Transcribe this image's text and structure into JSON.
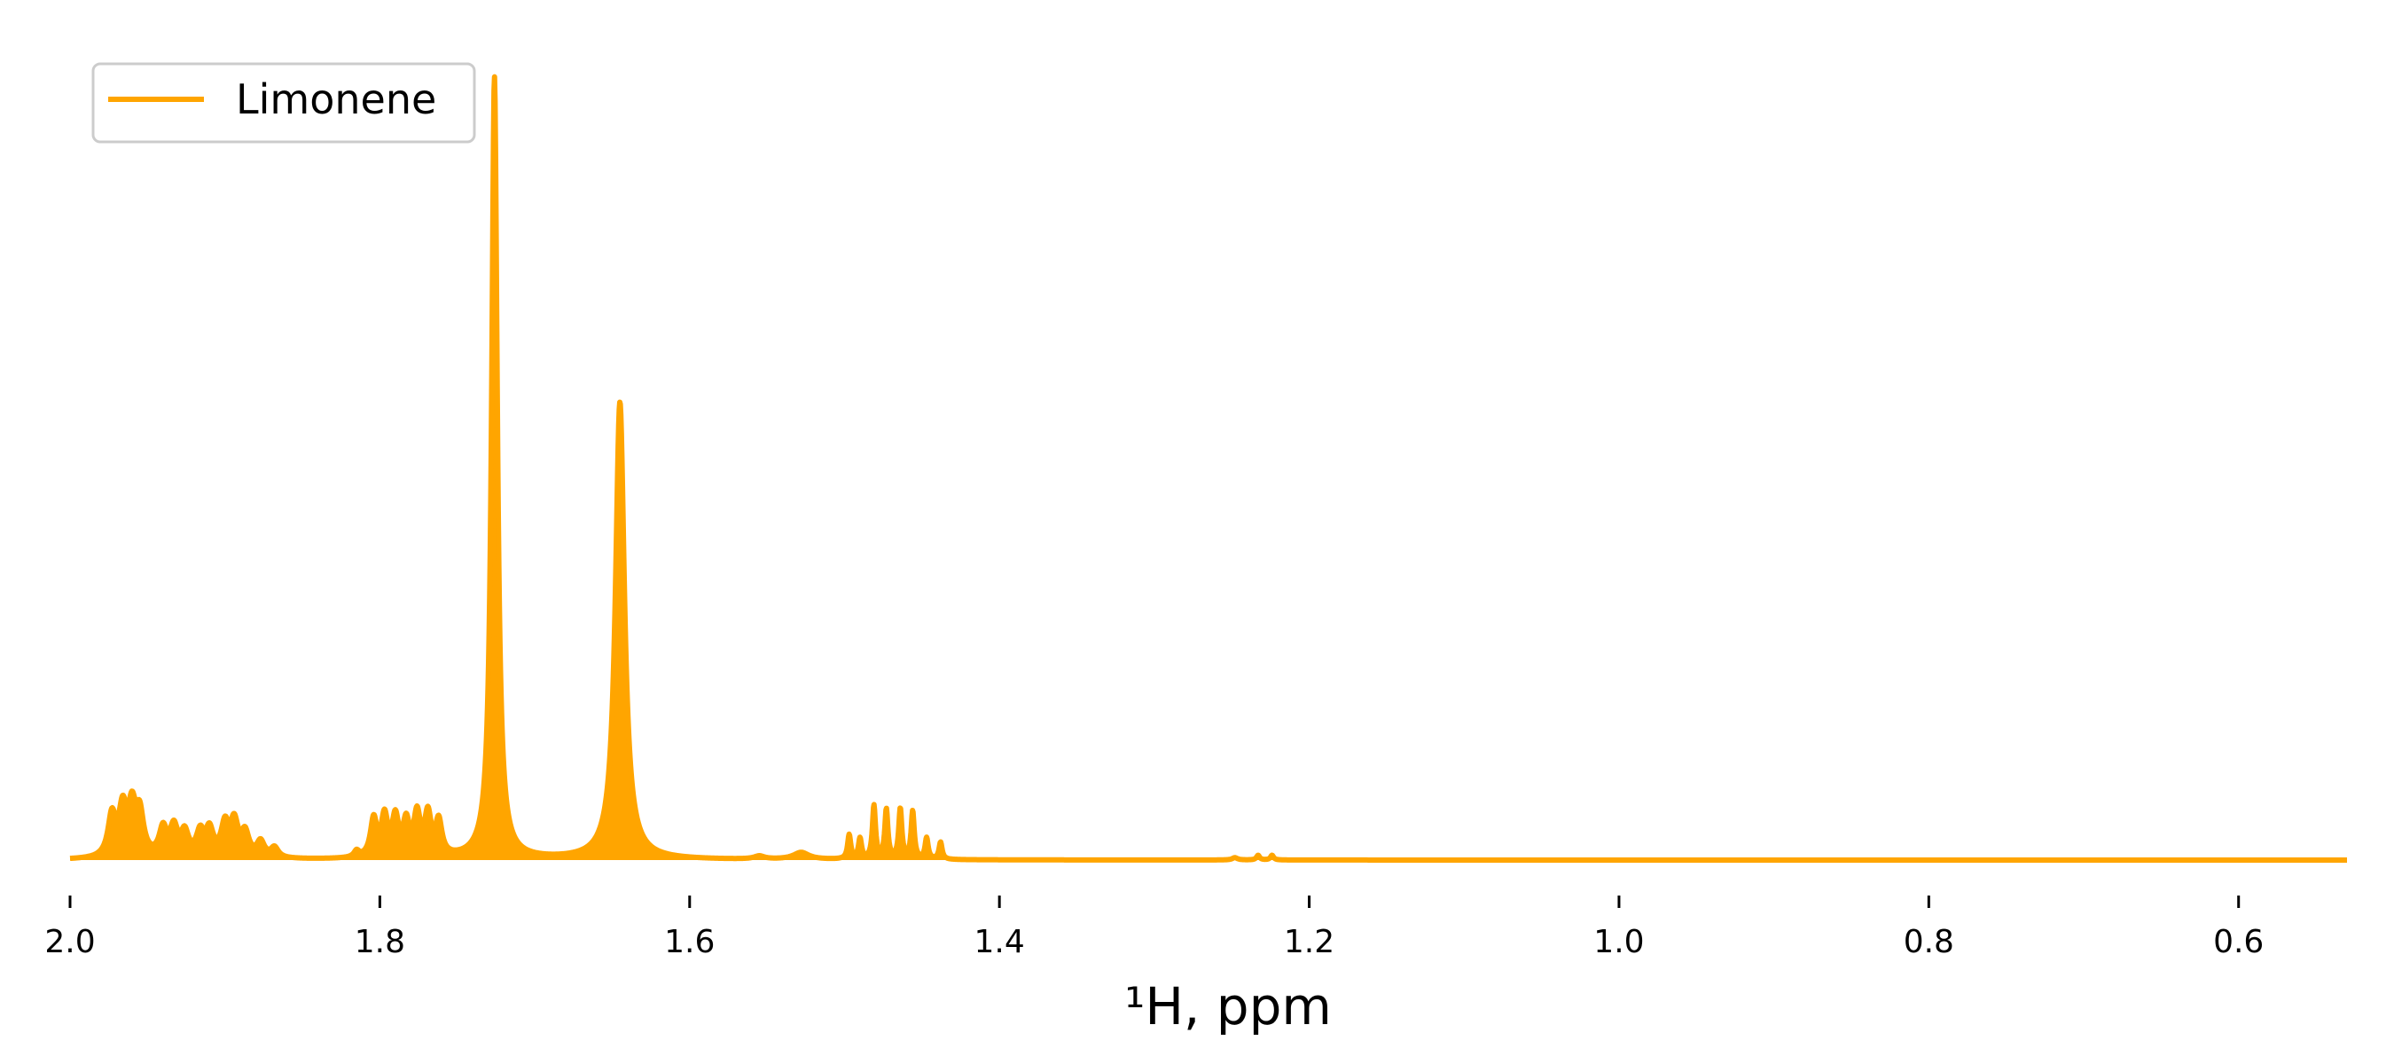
{
  "chart_data": {
    "type": "line",
    "title": "",
    "xlabel": "¹H, ppm",
    "ylabel": "",
    "x_axis_reversed": true,
    "xlim": [
      2.0,
      0.53
    ],
    "ylim": [
      0,
      1.0
    ],
    "xticks": [
      {
        "value": 2.0,
        "label": "2.0"
      },
      {
        "value": 1.8,
        "label": "1.8"
      },
      {
        "value": 1.6,
        "label": "1.6"
      },
      {
        "value": 1.4,
        "label": "1.4"
      },
      {
        "value": 1.2,
        "label": "1.2"
      },
      {
        "value": 1.0,
        "label": "1.0"
      },
      {
        "value": 0.8,
        "label": "0.8"
      },
      {
        "value": 0.6,
        "label": "0.6"
      }
    ],
    "grid": false,
    "filled": true,
    "legend": {
      "position": "upper-left"
    },
    "series": [
      {
        "name": "Limonene",
        "color": "#FFA500",
        "peaks": [
          {
            "center": 1.973,
            "height": 0.052,
            "width": 0.003
          },
          {
            "center": 1.966,
            "height": 0.058,
            "width": 0.003
          },
          {
            "center": 1.96,
            "height": 0.058,
            "width": 0.003
          },
          {
            "center": 1.955,
            "height": 0.052,
            "width": 0.003
          },
          {
            "center": 1.94,
            "height": 0.035,
            "width": 0.003
          },
          {
            "center": 1.933,
            "height": 0.036,
            "width": 0.003
          },
          {
            "center": 1.926,
            "height": 0.03,
            "width": 0.003
          },
          {
            "center": 1.916,
            "height": 0.03,
            "width": 0.003
          },
          {
            "center": 1.91,
            "height": 0.033,
            "width": 0.003
          },
          {
            "center": 1.9,
            "height": 0.04,
            "width": 0.003
          },
          {
            "center": 1.894,
            "height": 0.043,
            "width": 0.003
          },
          {
            "center": 1.887,
            "height": 0.03,
            "width": 0.003
          },
          {
            "center": 1.877,
            "height": 0.02,
            "width": 0.003
          },
          {
            "center": 1.868,
            "height": 0.013,
            "width": 0.003
          },
          {
            "center": 1.815,
            "height": 0.008,
            "width": 0.002
          },
          {
            "center": 1.804,
            "height": 0.048,
            "width": 0.0025
          },
          {
            "center": 1.797,
            "height": 0.05,
            "width": 0.0025
          },
          {
            "center": 1.79,
            "height": 0.048,
            "width": 0.0025
          },
          {
            "center": 1.783,
            "height": 0.042,
            "width": 0.0025
          },
          {
            "center": 1.776,
            "height": 0.052,
            "width": 0.0025
          },
          {
            "center": 1.769,
            "height": 0.052,
            "width": 0.0025
          },
          {
            "center": 1.762,
            "height": 0.044,
            "width": 0.0025
          },
          {
            "center": 1.726,
            "height": 1.0,
            "width": 0.0022
          },
          {
            "center": 1.645,
            "height": 0.585,
            "width": 0.0035
          },
          {
            "center": 1.555,
            "height": 0.004,
            "width": 0.004
          },
          {
            "center": 1.528,
            "height": 0.009,
            "width": 0.006
          },
          {
            "center": 1.497,
            "height": 0.031,
            "width": 0.0012
          },
          {
            "center": 1.49,
            "height": 0.026,
            "width": 0.0012
          },
          {
            "center": 1.481,
            "height": 0.068,
            "width": 0.0012
          },
          {
            "center": 1.473,
            "height": 0.063,
            "width": 0.0012
          },
          {
            "center": 1.464,
            "height": 0.064,
            "width": 0.0012
          },
          {
            "center": 1.456,
            "height": 0.061,
            "width": 0.0012
          },
          {
            "center": 1.447,
            "height": 0.027,
            "width": 0.0012
          },
          {
            "center": 1.438,
            "height": 0.022,
            "width": 0.0012
          },
          {
            "center": 1.248,
            "height": 0.003,
            "width": 0.002
          },
          {
            "center": 1.233,
            "height": 0.006,
            "width": 0.0012
          },
          {
            "center": 1.224,
            "height": 0.006,
            "width": 0.0012
          }
        ]
      }
    ]
  }
}
